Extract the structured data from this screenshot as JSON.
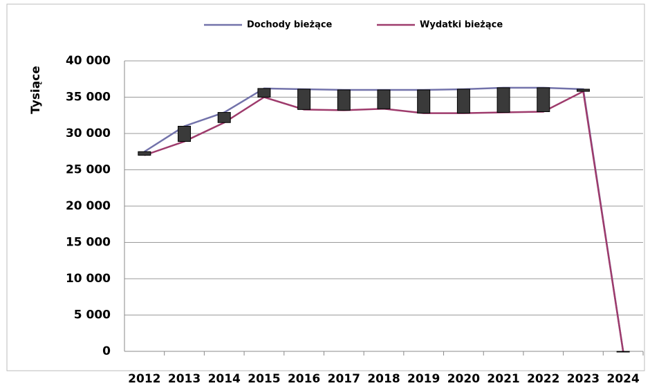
{
  "chart_data": {
    "type": "line",
    "y_label": "Tysiące",
    "categories": [
      "2012",
      "2013",
      "2014",
      "2015",
      "2016",
      "2017",
      "2018",
      "2019",
      "2020",
      "2021",
      "2022",
      "2023",
      "2024"
    ],
    "series": [
      {
        "name": "Dochody bieżące",
        "color": "#7272aa",
        "values": [
          27500,
          31000,
          32900,
          36200,
          36100,
          36000,
          36000,
          36000,
          36100,
          36300,
          36300,
          36100,
          0
        ]
      },
      {
        "name": "Wydatki bieżące",
        "color": "#9e3b6c",
        "values": [
          27000,
          28900,
          31500,
          35000,
          33300,
          33200,
          33400,
          32800,
          32800,
          32900,
          33000,
          35800,
          0
        ]
      }
    ],
    "up_down_bars": true,
    "ylim": [
      0,
      40000
    ],
    "yticks": [
      0,
      {
        "value": 5000,
        "label": "5 000"
      },
      {
        "value": 10000,
        "label": "10 000"
      },
      {
        "value": 15000,
        "label": "15 000"
      },
      {
        "value": 20000,
        "label": "20 000"
      },
      {
        "value": 25000,
        "label": "25 000"
      },
      {
        "value": 30000,
        "label": "30 000"
      },
      {
        "value": 35000,
        "label": "35 000"
      },
      {
        "value": 40000,
        "label": "40 000"
      }
    ],
    "grid": true,
    "legend": "top"
  }
}
